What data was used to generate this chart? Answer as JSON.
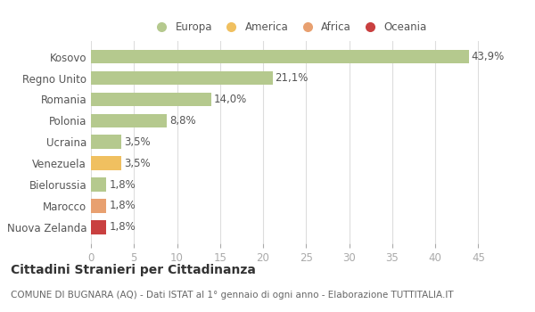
{
  "categories": [
    "Kosovo",
    "Regno Unito",
    "Romania",
    "Polonia",
    "Ucraina",
    "Venezuela",
    "Bielorussia",
    "Marocco",
    "Nuova Zelanda"
  ],
  "values": [
    43.9,
    21.1,
    14.0,
    8.8,
    3.5,
    3.5,
    1.8,
    1.8,
    1.8
  ],
  "labels": [
    "43,9%",
    "21,1%",
    "14,0%",
    "8,8%",
    "3,5%",
    "3,5%",
    "1,8%",
    "1,8%",
    "1,8%"
  ],
  "colors": [
    "#b5c98e",
    "#b5c98e",
    "#b5c98e",
    "#b5c98e",
    "#b5c98e",
    "#f0c060",
    "#b5c98e",
    "#e8a070",
    "#c94040"
  ],
  "legend": [
    {
      "label": "Europa",
      "color": "#b5c98e"
    },
    {
      "label": "America",
      "color": "#f0c060"
    },
    {
      "label": "Africa",
      "color": "#e8a070"
    },
    {
      "label": "Oceania",
      "color": "#c94040"
    }
  ],
  "xlim": [
    0,
    46
  ],
  "xticks": [
    0,
    5,
    10,
    15,
    20,
    25,
    30,
    35,
    40,
    45
  ],
  "title_bold": "Cittadini Stranieri per Cittadinanza",
  "subtitle": "COMUNE DI BUGNARA (AQ) - Dati ISTAT al 1° gennaio di ogni anno - Elaborazione TUTTITALIA.IT",
  "background_color": "#ffffff",
  "grid_color": "#dddddd",
  "bar_height": 0.65,
  "label_fontsize": 8.5,
  "tick_fontsize": 8.5,
  "title_fontsize": 10,
  "subtitle_fontsize": 7.5
}
